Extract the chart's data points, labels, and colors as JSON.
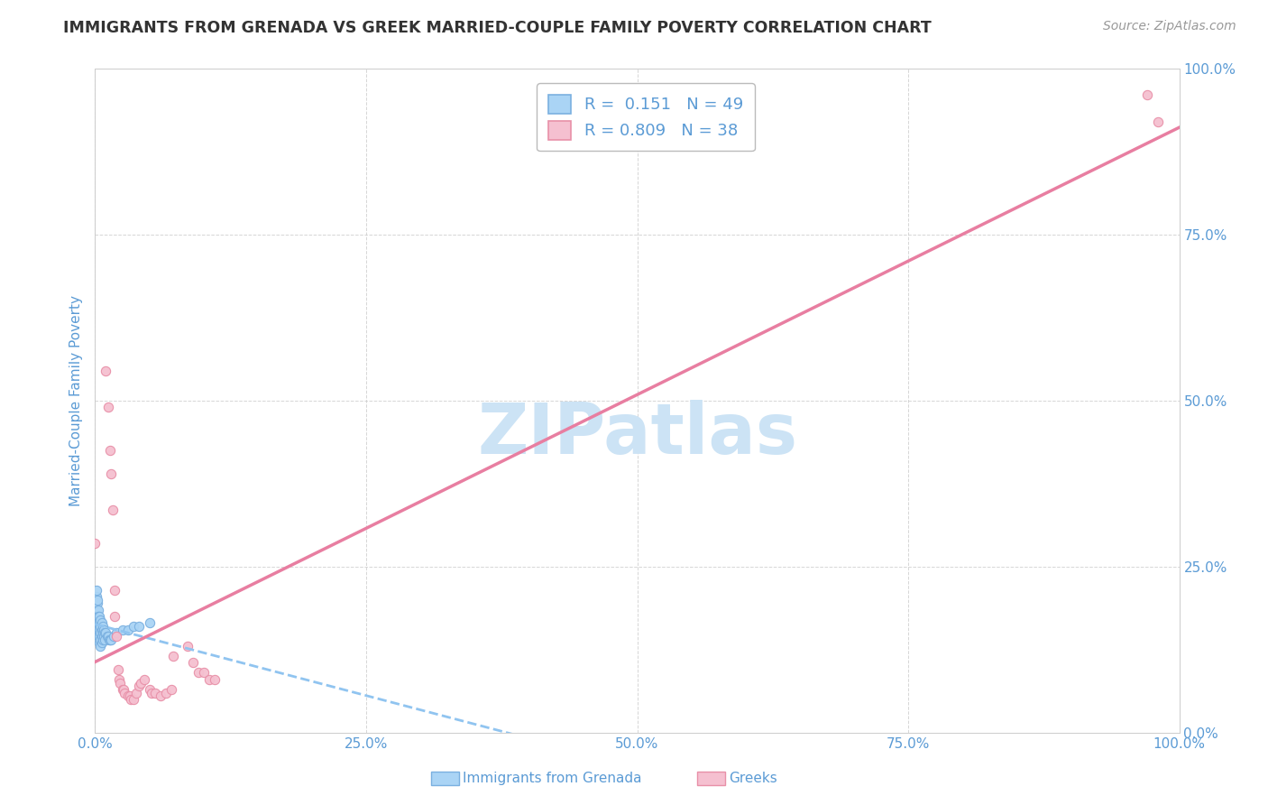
{
  "title": "IMMIGRANTS FROM GRENADA VS GREEK MARRIED-COUPLE FAMILY POVERTY CORRELATION CHART",
  "source": "Source: ZipAtlas.com",
  "xlabel_bottom": "Immigrants from Grenada",
  "ylabel": "Married-Couple Family Poverty",
  "watermark": "ZIPatlas",
  "legend_blue_r": "0.151",
  "legend_blue_n": "49",
  "legend_pink_r": "0.809",
  "legend_pink_n": "38",
  "blue_scatter": [
    [
      0.0,
      0.195
    ],
    [
      0.001,
      0.205
    ],
    [
      0.001,
      0.215
    ],
    [
      0.001,
      0.185
    ],
    [
      0.001,
      0.175
    ],
    [
      0.002,
      0.195
    ],
    [
      0.002,
      0.175
    ],
    [
      0.002,
      0.165
    ],
    [
      0.002,
      0.155
    ],
    [
      0.002,
      0.2
    ],
    [
      0.003,
      0.185
    ],
    [
      0.003,
      0.175
    ],
    [
      0.003,
      0.165
    ],
    [
      0.003,
      0.155
    ],
    [
      0.003,
      0.145
    ],
    [
      0.004,
      0.175
    ],
    [
      0.004,
      0.165
    ],
    [
      0.004,
      0.155
    ],
    [
      0.004,
      0.145
    ],
    [
      0.004,
      0.135
    ],
    [
      0.005,
      0.17
    ],
    [
      0.005,
      0.16
    ],
    [
      0.005,
      0.15
    ],
    [
      0.005,
      0.14
    ],
    [
      0.005,
      0.13
    ],
    [
      0.006,
      0.165
    ],
    [
      0.006,
      0.155
    ],
    [
      0.006,
      0.145
    ],
    [
      0.006,
      0.135
    ],
    [
      0.007,
      0.16
    ],
    [
      0.007,
      0.15
    ],
    [
      0.007,
      0.14
    ],
    [
      0.008,
      0.155
    ],
    [
      0.008,
      0.145
    ],
    [
      0.009,
      0.15
    ],
    [
      0.009,
      0.14
    ],
    [
      0.01,
      0.15
    ],
    [
      0.011,
      0.145
    ],
    [
      0.012,
      0.145
    ],
    [
      0.013,
      0.14
    ],
    [
      0.014,
      0.14
    ],
    [
      0.015,
      0.14
    ],
    [
      0.017,
      0.145
    ],
    [
      0.02,
      0.15
    ],
    [
      0.025,
      0.155
    ],
    [
      0.03,
      0.155
    ],
    [
      0.035,
      0.16
    ],
    [
      0.04,
      0.16
    ],
    [
      0.05,
      0.165
    ]
  ],
  "pink_scatter": [
    [
      0.0,
      0.285
    ],
    [
      0.01,
      0.545
    ],
    [
      0.012,
      0.49
    ],
    [
      0.014,
      0.425
    ],
    [
      0.015,
      0.39
    ],
    [
      0.016,
      0.335
    ],
    [
      0.018,
      0.215
    ],
    [
      0.018,
      0.175
    ],
    [
      0.02,
      0.145
    ],
    [
      0.021,
      0.095
    ],
    [
      0.022,
      0.08
    ],
    [
      0.023,
      0.075
    ],
    [
      0.025,
      0.065
    ],
    [
      0.026,
      0.065
    ],
    [
      0.027,
      0.06
    ],
    [
      0.03,
      0.055
    ],
    [
      0.032,
      0.055
    ],
    [
      0.033,
      0.05
    ],
    [
      0.035,
      0.05
    ],
    [
      0.038,
      0.06
    ],
    [
      0.04,
      0.07
    ],
    [
      0.042,
      0.075
    ],
    [
      0.045,
      0.08
    ],
    [
      0.05,
      0.065
    ],
    [
      0.052,
      0.06
    ],
    [
      0.055,
      0.06
    ],
    [
      0.06,
      0.055
    ],
    [
      0.065,
      0.06
    ],
    [
      0.07,
      0.065
    ],
    [
      0.072,
      0.115
    ],
    [
      0.085,
      0.13
    ],
    [
      0.09,
      0.105
    ],
    [
      0.095,
      0.09
    ],
    [
      0.1,
      0.09
    ],
    [
      0.105,
      0.08
    ],
    [
      0.11,
      0.08
    ],
    [
      0.97,
      0.96
    ],
    [
      0.98,
      0.92
    ]
  ],
  "xmin": 0.0,
  "xmax": 1.0,
  "ymin": 0.0,
  "ymax": 1.0,
  "blue_line_color": "#90c4f0",
  "pink_line_color": "#e87ea1",
  "scatter_blue_color": "#aad4f5",
  "scatter_pink_color": "#f5c0d0",
  "scatter_blue_edge": "#7ab0e0",
  "scatter_pink_edge": "#e890a8",
  "grid_color": "#cccccc",
  "background_color": "#ffffff",
  "title_color": "#333333",
  "source_color": "#999999",
  "watermark_color": "#cce3f5",
  "axis_label_color": "#5b9bd5",
  "tick_label_color": "#5b9bd5",
  "ytick_positions": [
    0.0,
    0.25,
    0.5,
    0.75,
    1.0
  ],
  "xtick_positions": [
    0.0,
    0.25,
    0.5,
    0.75,
    1.0
  ]
}
